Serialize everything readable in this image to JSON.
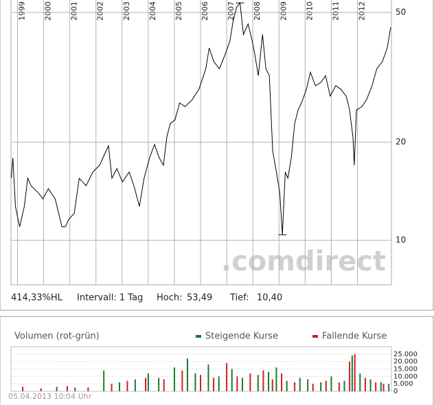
{
  "chart_data": [
    {
      "type": "line",
      "log_y": true,
      "grid": true,
      "color": "#000000",
      "xlim": [
        1998.75,
        2013.3
      ],
      "xticks": [
        1999,
        2000,
        2001,
        2002,
        2003,
        2004,
        2005,
        2006,
        2007,
        2008,
        2009,
        2010,
        2011,
        2012
      ],
      "ylim": [
        7.3,
        54.6
      ],
      "yticks": [
        10,
        20,
        50
      ],
      "x": [
        1998.76,
        1998.82,
        1998.92,
        1999.08,
        1999.26,
        1999.39,
        1999.52,
        1999.79,
        1999.97,
        2000.18,
        2000.44,
        2000.7,
        2000.83,
        2000.96,
        2001.17,
        2001.36,
        2001.62,
        2001.88,
        2002.14,
        2002.32,
        2002.48,
        2002.61,
        2002.8,
        2003.01,
        2003.27,
        2003.45,
        2003.66,
        2003.84,
        2004.05,
        2004.24,
        2004.42,
        2004.58,
        2004.71,
        2004.84,
        2005.02,
        2005.2,
        2005.41,
        2005.68,
        2005.94,
        2006.2,
        2006.33,
        2006.51,
        2006.72,
        2006.93,
        2007.12,
        2007.25,
        2007.38,
        2007.51,
        2007.64,
        2007.82,
        2007.98,
        2008.08,
        2008.21,
        2008.37,
        2008.5,
        2008.63,
        2008.76,
        2008.9,
        2009.03,
        2009.13,
        2009.24,
        2009.34,
        2009.47,
        2009.6,
        2009.73,
        2009.86,
        2010.05,
        2010.2,
        2010.39,
        2010.6,
        2010.78,
        2010.96,
        2011.17,
        2011.36,
        2011.57,
        2011.7,
        2011.83,
        2011.88,
        2011.96,
        2012.17,
        2012.35,
        2012.56,
        2012.74,
        2012.95,
        2013.14,
        2013.27
      ],
      "values": [
        15.5,
        17.9,
        12.7,
        11.0,
        12.7,
        15.5,
        14.7,
        14.0,
        13.4,
        14.4,
        13.4,
        11.0,
        11.0,
        11.6,
        12.1,
        15.5,
        14.7,
        16.2,
        17.0,
        18.3,
        19.5,
        15.5,
        16.6,
        15.1,
        16.2,
        14.7,
        12.7,
        15.5,
        17.9,
        19.7,
        17.9,
        17.0,
        20.7,
        22.8,
        23.4,
        26.4,
        25.7,
        27.0,
        29.1,
        33.6,
        38.9,
        35.3,
        33.6,
        37.0,
        40.8,
        47.2,
        51.9,
        53.49,
        42.8,
        46.1,
        40.8,
        37.0,
        32.0,
        42.8,
        33.6,
        32.0,
        18.8,
        16.2,
        14.0,
        10.4,
        16.2,
        15.5,
        17.9,
        22.8,
        25.1,
        26.4,
        29.1,
        32.8,
        29.8,
        30.5,
        32.0,
        27.7,
        29.8,
        29.1,
        27.7,
        25.1,
        20.7,
        17.0,
        25.1,
        25.7,
        27.0,
        29.8,
        33.6,
        35.3,
        38.9,
        45.0
      ],
      "annotations": [
        "414,33%HL",
        "Intervall: 1 Tag",
        "Hoch:",
        "53,49",
        "Tief:",
        "10,40"
      ],
      "watermark": ".comdirect"
    },
    {
      "type": "bar",
      "title": "Volumen (rot-grün)",
      "grid": true,
      "xlim": [
        1998.75,
        2013.3
      ],
      "ylim": [
        0,
        30000
      ],
      "yticks": [
        0,
        {
          "value": 5000,
          "label": "5.000"
        },
        {
          "value": 10000,
          "label": "10.000"
        },
        {
          "value": 15000,
          "label": "15.000"
        },
        {
          "value": 20000,
          "label": "20.000"
        },
        {
          "value": 25000,
          "label": "25.000"
        }
      ],
      "series": [
        {
          "name": "Steigende Kurse",
          "color": "#1a7a2e",
          "x": [
            2000.5,
            2001.2,
            2002.3,
            2002.9,
            2003.5,
            2004.0,
            2004.4,
            2005.0,
            2005.5,
            2005.8,
            2006.3,
            2006.7,
            2007.2,
            2007.6,
            2008.2,
            2008.6,
            2008.9,
            2009.3,
            2009.8,
            2010.1,
            2010.6,
            2011.0,
            2011.5,
            2011.8,
            2012.1,
            2012.5,
            2012.9,
            2013.2
          ],
          "values": [
            3000,
            2500,
            14000,
            6000,
            8000,
            12000,
            9000,
            16000,
            22000,
            12000,
            18000,
            10000,
            15000,
            9000,
            11000,
            13000,
            16000,
            7000,
            9000,
            8000,
            6000,
            10000,
            7000,
            24000,
            12000,
            8000,
            6000,
            5000
          ]
        },
        {
          "name": "Fallende Kurse",
          "color": "#cc1f1f",
          "x": [
            1999.2,
            1999.9,
            2000.9,
            2001.7,
            2002.6,
            2003.2,
            2003.9,
            2004.6,
            2005.3,
            2006.0,
            2006.5,
            2007.0,
            2007.4,
            2007.9,
            2008.4,
            2008.75,
            2009.1,
            2009.6,
            2010.3,
            2010.8,
            2011.3,
            2011.7,
            2011.9,
            2012.3,
            2012.7,
            2013.0
          ],
          "values": [
            3000,
            2000,
            3500,
            2500,
            5000,
            7000,
            9000,
            8000,
            14000,
            11000,
            9000,
            19000,
            10000,
            12000,
            14000,
            8000,
            12000,
            6000,
            5000,
            7000,
            6000,
            20000,
            25000,
            9000,
            6000,
            5000
          ]
        }
      ],
      "footer": "05.04.2013 10:04 Uhr"
    }
  ]
}
